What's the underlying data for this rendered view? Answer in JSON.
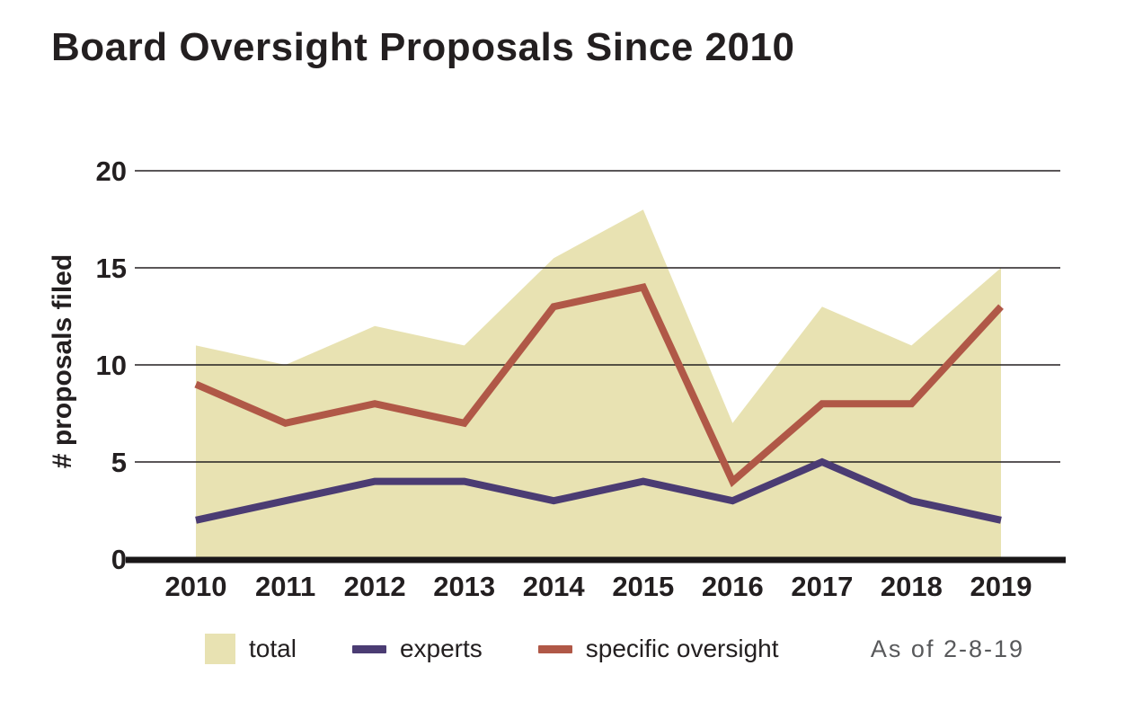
{
  "chart_data": {
    "type": "area",
    "title": "Board Oversight Proposals Since 2010",
    "ylabel": "# proposals filed",
    "xlabel": "",
    "annotation": "As of 2-8-19",
    "categories": [
      "2010",
      "2011",
      "2012",
      "2013",
      "2014",
      "2015",
      "2016",
      "2017",
      "2018",
      "2019"
    ],
    "ylim": [
      0,
      20
    ],
    "yticks": [
      0,
      5,
      10,
      15,
      20
    ],
    "grid": true,
    "legend_position": "bottom",
    "colors": {
      "text": "#231f20",
      "grid": "#231f20",
      "axis": "#1a1718",
      "annotation": "#58595b",
      "background": "#ffffff"
    },
    "series": [
      {
        "name": "total",
        "type": "area",
        "color": "#e8e2b2",
        "values": [
          11,
          10,
          12,
          11,
          15.5,
          18,
          7,
          13,
          11,
          15
        ]
      },
      {
        "name": "experts",
        "type": "line",
        "color": "#4b3c73",
        "values": [
          2,
          3,
          4,
          4,
          3,
          4,
          3,
          5,
          3,
          2
        ]
      },
      {
        "name": "specific oversight",
        "type": "line",
        "color": "#b05847",
        "values": [
          9,
          7,
          8,
          7,
          13,
          14,
          4,
          8,
          8,
          13
        ]
      }
    ]
  }
}
